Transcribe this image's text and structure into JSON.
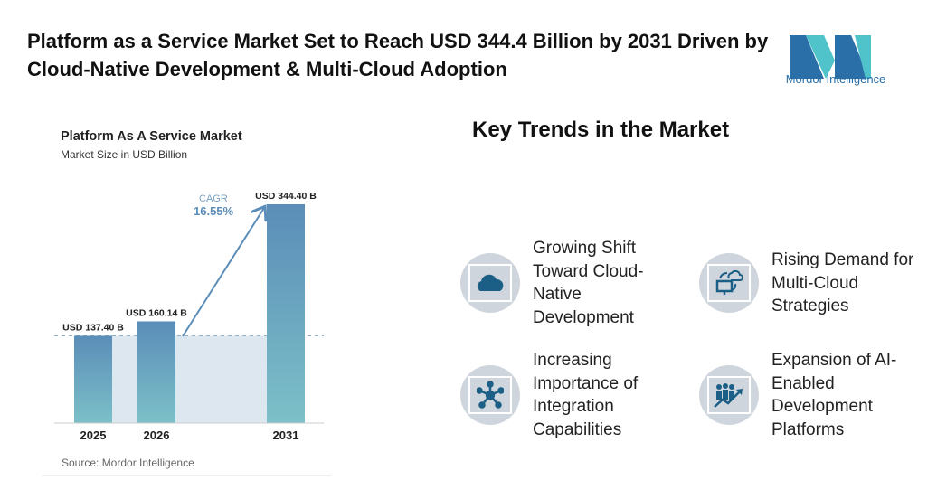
{
  "title": "Platform as a Service Market Set to Reach USD 344.4 Billion by 2031 Driven by Cloud-Native Development & Multi-Cloud Adoption",
  "logo": {
    "text": "Mordor Intelligence",
    "colors": [
      "#2a6fa8",
      "#4fc3c9"
    ]
  },
  "chart_data": {
    "type": "bar",
    "title": "Platform As A Service Market",
    "subtitle": "Market Size in USD Billion",
    "categories": [
      "2025",
      "2026",
      "2031"
    ],
    "values": [
      137.4,
      160.14,
      344.4
    ],
    "data_labels": [
      "USD 137.40 B",
      "USD 160.14 B",
      "USD 344.40 B"
    ],
    "annotation": {
      "label": "CAGR",
      "value": "16.55%"
    },
    "source": "Source: Mordor Intelligence",
    "colors": {
      "bar_top": "#5b8db8",
      "bar_bottom": "#7cc0c8",
      "shade": "#dde7ef",
      "accent": "#5b8db8"
    }
  },
  "key_trends": {
    "heading": "Key Trends in the Market",
    "items": [
      {
        "label": "Growing Shift Toward Cloud-Native Development",
        "icon": "cloud-icon"
      },
      {
        "label": "Rising Demand for Multi-Cloud Strategies",
        "icon": "multi-cloud-icon"
      },
      {
        "label": "Increasing Importance of Integration Capabilities",
        "icon": "network-hub-icon"
      },
      {
        "label": "Expansion of AI-Enabled Development Platforms",
        "icon": "growth-team-icon"
      }
    ],
    "icon_color": "#1c5f86"
  }
}
